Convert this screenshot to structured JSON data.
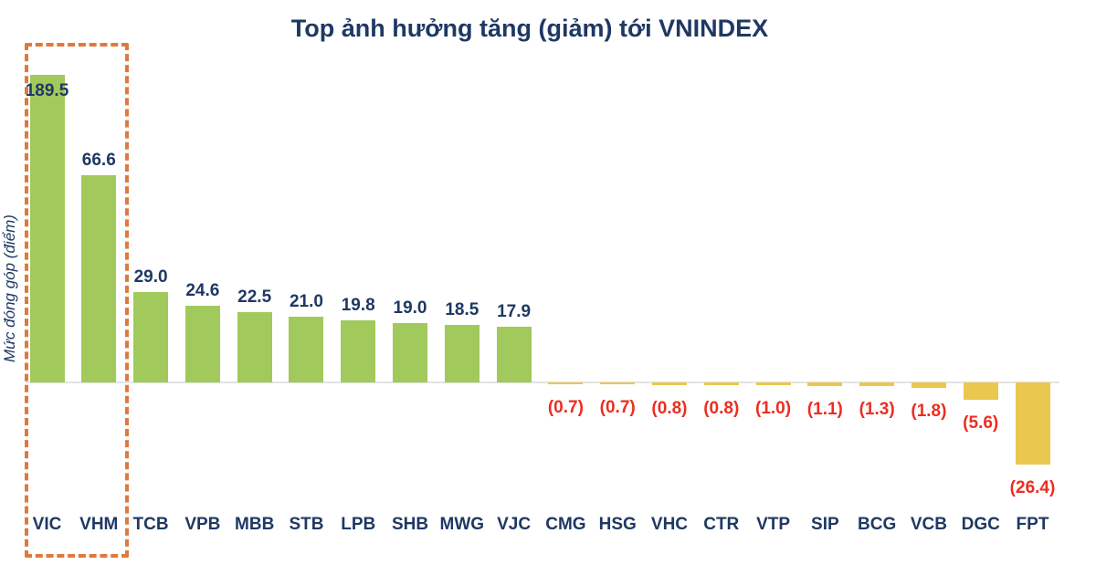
{
  "chart_data": {
    "type": "bar",
    "title": "Top ảnh hưởng tăng (giảm) tới VNINDEX",
    "ylabel": "Mức đóng góp (điểm)",
    "categories": [
      "VIC",
      "VHM",
      "TCB",
      "VPB",
      "MBB",
      "STB",
      "LPB",
      "SHB",
      "MWG",
      "VJC",
      "CMG",
      "HSG",
      "VHC",
      "CTR",
      "VTP",
      "SIP",
      "BCG",
      "VCB",
      "DGC",
      "FPT"
    ],
    "values": [
      189.5,
      66.6,
      29.0,
      24.6,
      22.5,
      21.0,
      19.8,
      19.0,
      18.5,
      17.9,
      -0.7,
      -0.7,
      -0.8,
      -0.8,
      -1.0,
      -1.1,
      -1.3,
      -1.8,
      -5.6,
      -26.4
    ],
    "value_labels": [
      "189.5",
      "66.6",
      "29.0",
      "24.6",
      "22.5",
      "21.0",
      "19.8",
      "19.0",
      "18.5",
      "17.9",
      "(0.7)",
      "(0.7)",
      "(0.8)",
      "(0.8)",
      "(1.0)",
      "(1.1)",
      "(1.3)",
      "(1.8)",
      "(5.6)",
      "(26.4)"
    ],
    "highlighted_categories": [
      "VIC",
      "VHM"
    ],
    "axis": {
      "ylim": [
        -30,
        100
      ],
      "grid": false,
      "note": "VIC bar clipped at axis top"
    },
    "legend": null,
    "colors": {
      "positive_bar": "#A1C95B",
      "negative_bar": "#EAC74E",
      "positive_label": "#1F3864",
      "negative_label": "#ED2D1F",
      "category_label": "#1F3864",
      "title": "#1F3864",
      "ylabel": "#1F3864",
      "axis_line": "#E3E3E3",
      "highlight_box": "#E0793C"
    }
  }
}
